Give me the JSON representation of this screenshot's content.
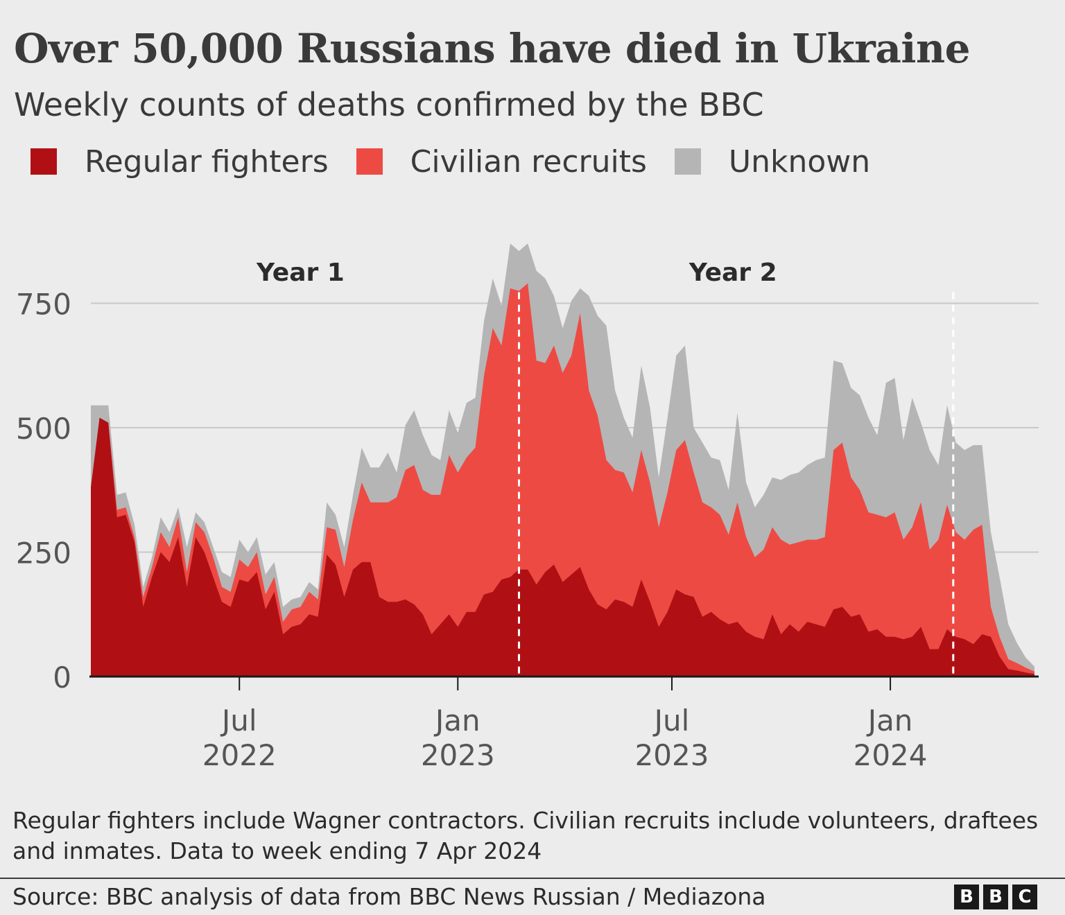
{
  "header": {
    "title": "Over 50,000 Russians have died in Ukraine",
    "subtitle": "Weekly counts of deaths confirmed by the BBC"
  },
  "legend": [
    {
      "label": "Regular fighters",
      "color": "#b01014"
    },
    {
      "label": "Civilian recruits",
      "color": "#ee4a44"
    },
    {
      "label": "Unknown",
      "color": "#b5b5b5"
    }
  ],
  "footer": {
    "note": "Regular fighters include Wagner contractors. Civilian recruits include volunteers, draftees and inmates. Data to week ending 7 Apr 2024",
    "source": "Source: BBC analysis of data from BBC News Russian / Mediazona",
    "logo_letters": [
      "B",
      "B",
      "C"
    ]
  },
  "chart_data": {
    "type": "area",
    "stacked": true,
    "x_unit": "week",
    "y_ticks": [
      0,
      250,
      500,
      750
    ],
    "ylim": [
      0,
      950
    ],
    "x_ticks": [
      {
        "index": 17,
        "line1": "Jul",
        "line2": "2022"
      },
      {
        "index": 42,
        "line1": "Jan",
        "line2": "2023"
      },
      {
        "index": 66.5,
        "line1": "Jul",
        "line2": "2023"
      },
      {
        "index": 91.5,
        "line1": "Jan",
        "line2": "2024"
      }
    ],
    "annotations": [
      {
        "text": "Year 1",
        "index": 24,
        "y": 795
      },
      {
        "text": "Year 2",
        "index": 73.5,
        "y": 795
      }
    ],
    "year_dividers": [
      49,
      98.7
    ],
    "grid": true,
    "legend_position": "top",
    "series": [
      {
        "name": "Regular fighters",
        "color": "#b01014",
        "values": [
          380,
          520,
          510,
          320,
          325,
          270,
          140,
          200,
          250,
          230,
          280,
          180,
          280,
          250,
          200,
          150,
          140,
          195,
          190,
          210,
          135,
          170,
          85,
          100,
          105,
          125,
          120,
          245,
          225,
          160,
          215,
          230,
          230,
          160,
          150,
          150,
          155,
          145,
          125,
          85,
          105,
          125,
          100,
          130,
          130,
          165,
          170,
          195,
          200,
          215,
          215,
          185,
          210,
          225,
          190,
          205,
          220,
          175,
          145,
          135,
          155,
          150,
          140,
          195,
          150,
          100,
          130,
          175,
          165,
          160,
          120,
          130,
          115,
          105,
          110,
          90,
          80,
          75,
          125,
          85,
          105,
          90,
          110,
          105,
          100,
          135,
          140,
          120,
          125,
          90,
          95,
          80,
          80,
          75,
          80,
          100,
          55,
          55,
          95,
          80,
          75,
          65,
          85,
          80,
          40,
          15,
          12,
          8,
          5
        ]
      },
      {
        "name": "Civilian recruits",
        "color": "#ee4a44",
        "values": [
          0,
          0,
          0,
          15,
          15,
          10,
          20,
          20,
          40,
          30,
          40,
          30,
          30,
          40,
          40,
          30,
          30,
          40,
          30,
          40,
          30,
          30,
          25,
          35,
          35,
          45,
          35,
          55,
          70,
          60,
          100,
          160,
          120,
          190,
          200,
          210,
          260,
          280,
          250,
          280,
          260,
          320,
          310,
          310,
          330,
          440,
          530,
          470,
          580,
          560,
          575,
          450,
          420,
          440,
          420,
          440,
          510,
          400,
          380,
          300,
          260,
          260,
          230,
          260,
          240,
          200,
          240,
          280,
          310,
          250,
          230,
          210,
          210,
          180,
          240,
          190,
          160,
          180,
          175,
          190,
          160,
          180,
          165,
          170,
          180,
          320,
          330,
          280,
          250,
          240,
          230,
          240,
          250,
          200,
          220,
          250,
          200,
          220,
          250,
          210,
          200,
          230,
          220,
          60,
          40,
          20,
          15,
          10,
          5
        ]
      },
      {
        "name": "Unknown",
        "color": "#b5b5b5",
        "values": [
          165,
          25,
          35,
          30,
          30,
          25,
          20,
          20,
          30,
          30,
          20,
          50,
          20,
          20,
          20,
          30,
          30,
          40,
          30,
          30,
          40,
          30,
          30,
          20,
          20,
          20,
          20,
          50,
          30,
          40,
          50,
          70,
          70,
          70,
          100,
          50,
          90,
          110,
          110,
          80,
          70,
          90,
          80,
          110,
          100,
          110,
          100,
          80,
          90,
          80,
          80,
          180,
          170,
          100,
          90,
          110,
          50,
          190,
          200,
          270,
          160,
          110,
          110,
          170,
          150,
          100,
          150,
          190,
          190,
          90,
          120,
          100,
          110,
          90,
          180,
          110,
          100,
          110,
          100,
          120,
          140,
          140,
          150,
          160,
          160,
          180,
          160,
          180,
          190,
          190,
          160,
          270,
          270,
          200,
          260,
          160,
          200,
          150,
          200,
          180,
          180,
          170,
          160,
          150,
          120,
          70,
          40,
          20,
          10
        ]
      }
    ]
  }
}
